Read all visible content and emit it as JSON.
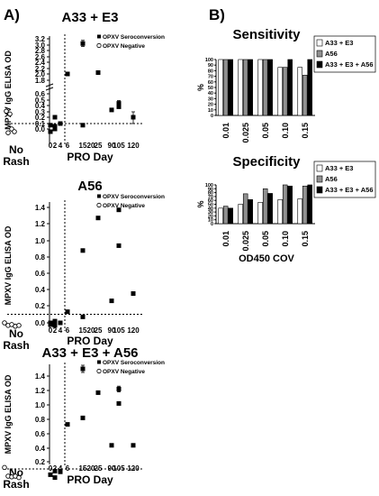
{
  "panel_labels": {
    "a": "A)",
    "b": "B)"
  },
  "chart_data": [
    {
      "id": "a1",
      "type": "scatter",
      "title": "A33 + E3",
      "ylabel": "MPXV IgG ELISA OD",
      "xlabel": "PRO Day",
      "group_label": "No Rash",
      "xticks": [
        "0",
        "2",
        "4",
        "6",
        "15",
        "20",
        "25",
        "90",
        "105",
        "120"
      ],
      "yticks": [
        "0.0",
        "0.1",
        "0.2",
        "0.3",
        "0.4",
        "0.5",
        "0.6",
        "1.8",
        "2.0",
        "2.2",
        "2.4",
        "2.6",
        "2.8",
        "3.0",
        "3.2"
      ],
      "ylim": [
        -0.1,
        3.3
      ],
      "cutoff": 0.1,
      "legend": [
        "OPXV Seroconversion",
        "OPXV Negative"
      ],
      "series": [
        {
          "name": "OPXV Seroconversion",
          "marker": "filled-square",
          "points": [
            {
              "x": "0",
              "y": 0.07
            },
            {
              "x": "0",
              "y": -0.05
            },
            {
              "x": "2",
              "y": 0.2
            },
            {
              "x": "2",
              "y": 0.05
            },
            {
              "x": "2",
              "y": 0.0
            },
            {
              "x": "4",
              "y": 0.1
            },
            {
              "x": "6",
              "y": 2.0
            },
            {
              "x": "15",
              "y": 3.05,
              "err": 0.1
            },
            {
              "x": "15",
              "y": 0.07
            },
            {
              "x": "25",
              "y": 2.05
            },
            {
              "x": "90",
              "y": 0.33
            },
            {
              "x": "105",
              "y": 0.38
            },
            {
              "x": "105",
              "y": 0.44,
              "err": 0.05
            },
            {
              "x": "120",
              "y": 0.2,
              "err": 0.1
            }
          ]
        },
        {
          "name": "OPXV Negative",
          "marker": "open-circle",
          "group": "No Rash",
          "values": [
            0.31,
            0.26,
            0.0,
            -0.05,
            -0.07
          ]
        }
      ]
    },
    {
      "id": "a2",
      "type": "scatter",
      "title": "A56",
      "ylabel": "MPXV IgG ELISA OD",
      "xlabel": "PRO Day",
      "group_label": "No Rash",
      "xticks": [
        "0",
        "2",
        "4",
        "6",
        "15",
        "20",
        "25",
        "90",
        "105",
        "120"
      ],
      "yticks": [
        "0.0",
        "0.2",
        "0.4",
        "0.6",
        "0.8",
        "1.0",
        "1.2",
        "1.4"
      ],
      "ylim": [
        -0.1,
        1.5
      ],
      "cutoff": 0.1,
      "legend": [
        "OPXV Seroconversion",
        "OPXV Negative"
      ],
      "series": [
        {
          "name": "OPXV Seroconversion",
          "marker": "filled-square",
          "points": [
            {
              "x": "0",
              "y": 0.0
            },
            {
              "x": "0",
              "y": -0.02
            },
            {
              "x": "2",
              "y": -0.03
            },
            {
              "x": "2",
              "y": 0.02
            },
            {
              "x": "4",
              "y": 0.0
            },
            {
              "x": "6",
              "y": 0.13
            },
            {
              "x": "15",
              "y": 0.88
            },
            {
              "x": "15",
              "y": 0.07
            },
            {
              "x": "25",
              "y": 1.27
            },
            {
              "x": "90",
              "y": 0.26
            },
            {
              "x": "105",
              "y": 1.37
            },
            {
              "x": "105",
              "y": 0.94
            },
            {
              "x": "120",
              "y": 0.35
            }
          ]
        },
        {
          "name": "OPXV Negative",
          "marker": "open-circle",
          "group": "No Rash",
          "values": [
            0.0,
            -0.03,
            -0.02,
            -0.04,
            -0.03
          ]
        }
      ]
    },
    {
      "id": "a3",
      "type": "scatter",
      "title": "A33 + E3 + A56",
      "ylabel": "MPXV IgG ELISA OD",
      "xlabel": "PRO Day",
      "group_label": "No Rash",
      "xticks": [
        "0",
        "2",
        "4",
        "6",
        "15",
        "20",
        "25",
        "90",
        "105",
        "120"
      ],
      "yticks": [
        "0.0",
        "0.2",
        "0.4",
        "0.6",
        "0.8",
        "1.0",
        "1.2",
        "1.4"
      ],
      "ylim": [
        -0.1,
        1.6
      ],
      "cutoff": 0.1,
      "legend": [
        "OPXV Seroconversion",
        "OPXV Negative"
      ],
      "series": [
        {
          "name": "OPXV Seroconversion",
          "marker": "filled-square",
          "points": [
            {
              "x": "0",
              "y": 0.02
            },
            {
              "x": "2",
              "y": 0.07
            },
            {
              "x": "2",
              "y": -0.02
            },
            {
              "x": "4",
              "y": 0.06
            },
            {
              "x": "6",
              "y": 0.73
            },
            {
              "x": "15",
              "y": 1.5,
              "err": 0.05
            },
            {
              "x": "15",
              "y": 0.82
            },
            {
              "x": "25",
              "y": 1.17
            },
            {
              "x": "90",
              "y": 0.44
            },
            {
              "x": "105",
              "y": 1.22,
              "err": 0.04
            },
            {
              "x": "105",
              "y": 1.02
            },
            {
              "x": "120",
              "y": 0.44
            }
          ]
        },
        {
          "name": "OPXV Negative",
          "marker": "open-circle",
          "group": "No Rash",
          "values": [
            0.12,
            0.0,
            -0.01,
            0.0,
            -0.02
          ]
        }
      ]
    },
    {
      "id": "b1",
      "type": "bar",
      "title": "Sensitivity",
      "ylabel": "%",
      "xlabel": "",
      "categories": [
        "0.01",
        "0.025",
        "0.05",
        "0.10",
        "0.15"
      ],
      "yticks": [
        "0",
        "10",
        "20",
        "30",
        "40",
        "50",
        "60",
        "70",
        "80",
        "90",
        "100"
      ],
      "ylim": [
        0,
        100
      ],
      "series": [
        {
          "name": "A33 + E3",
          "color": "#ffffff",
          "values": [
            100,
            100,
            100,
            86,
            86
          ]
        },
        {
          "name": "A56",
          "color": "#909090",
          "values": [
            100,
            100,
            100,
            86,
            72
          ]
        },
        {
          "name": "A33 + E3 + A56",
          "color": "#000000",
          "values": [
            100,
            100,
            100,
            100,
            100
          ]
        }
      ]
    },
    {
      "id": "b2",
      "type": "bar",
      "title": "Specificity",
      "ylabel": "%",
      "xlabel": "OD450 COV",
      "categories": [
        "0.01",
        "0.025",
        "0.05",
        "0.10",
        "0.15"
      ],
      "yticks": [
        "0",
        "10",
        "20",
        "30",
        "40",
        "50",
        "60",
        "70",
        "80",
        "90",
        "100"
      ],
      "ylim": [
        0,
        100
      ],
      "series": [
        {
          "name": "A33 + E3",
          "color": "#ffffff",
          "values": [
            40,
            50,
            55,
            62,
            64
          ]
        },
        {
          "name": "A56",
          "color": "#909090",
          "values": [
            45,
            77,
            90,
            100,
            97
          ]
        },
        {
          "name": "A33 + E3 + A56",
          "color": "#000000",
          "values": [
            40,
            62,
            78,
            97,
            100
          ]
        }
      ]
    }
  ]
}
